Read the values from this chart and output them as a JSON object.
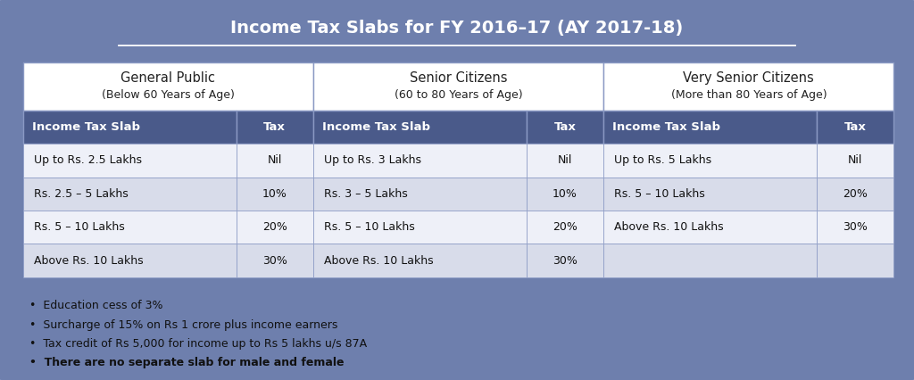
{
  "title": "Income Tax Slabs for FY 2016–17 (AY 2017-18)",
  "bg_color": "#6e7fad",
  "row_bg_light": "#eef0f8",
  "row_bg_alt": "#d8dcea",
  "col_header_bg": "#4a5a8a",
  "section_header_bg": "#ffffff",
  "sections": [
    {
      "title": "General Public",
      "subtitle": "(Below 60 Years of Age)",
      "rows": [
        [
          "Up to Rs. 2.5 Lakhs",
          "Nil"
        ],
        [
          "Rs. 2.5 – 5 Lakhs",
          "10%"
        ],
        [
          "Rs. 5 – 10 Lakhs",
          "20%"
        ],
        [
          "Above Rs. 10 Lakhs",
          "30%"
        ]
      ]
    },
    {
      "title": "Senior Citizens",
      "subtitle": "(60 to 80 Years of Age)",
      "rows": [
        [
          "Up to Rs. 3 Lakhs",
          "Nil"
        ],
        [
          "Rs. 3 – 5 Lakhs",
          "10%"
        ],
        [
          "Rs. 5 – 10 Lakhs",
          "20%"
        ],
        [
          "Above Rs. 10 Lakhs",
          "30%"
        ]
      ]
    },
    {
      "title": "Very Senior Citizens",
      "subtitle": "(More than 80 Years of Age)",
      "rows": [
        [
          "Up to Rs. 5 Lakhs",
          "Nil"
        ],
        [
          "Rs. 5 – 10 Lakhs",
          "20%"
        ],
        [
          "Above Rs. 10 Lakhs",
          "30%"
        ],
        [
          "",
          ""
        ]
      ]
    }
  ],
  "col_header": [
    "Income Tax Slab",
    "Tax"
  ],
  "bullets": [
    "Education cess of 3%",
    "Surcharge of 15% on Rs 1 crore plus income earners",
    "Tax credit of Rs 5,000 for income up to Rs 5 lakhs u/s 87A",
    "There are no separate slab for male and female"
  ],
  "bullet_bold_index": 3
}
